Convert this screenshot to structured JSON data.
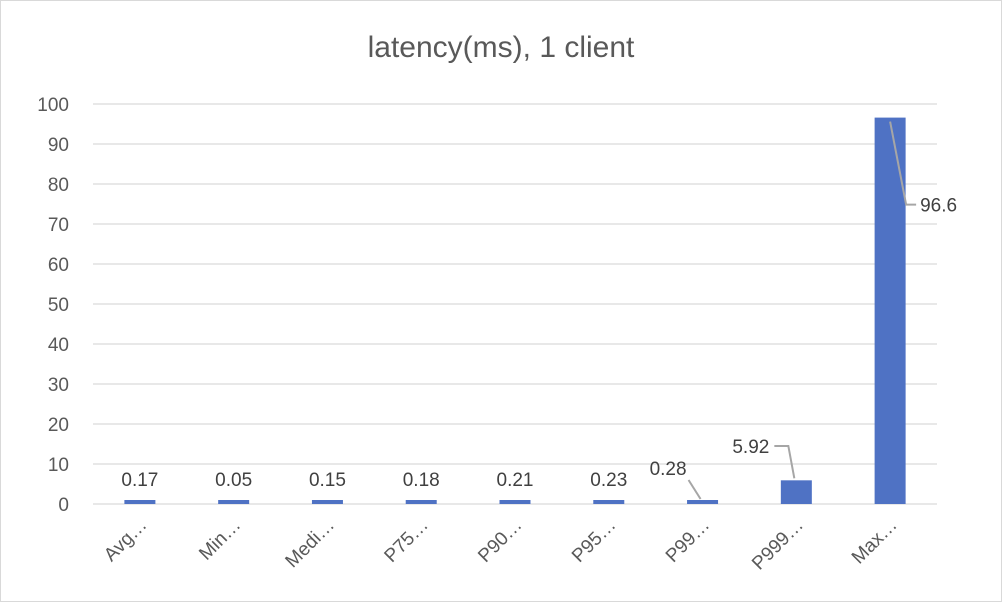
{
  "chart_data": {
    "type": "bar",
    "title": "latency(ms), 1 client",
    "categories": [
      "Avg…",
      "Min…",
      "Medi…",
      "P75…",
      "P90…",
      "P95…",
      "P99…",
      "P999…",
      "Max…"
    ],
    "values": [
      0.17,
      0.05,
      0.15,
      0.18,
      0.21,
      0.23,
      0.28,
      5.92,
      96.6
    ],
    "value_labels": [
      "0.17",
      "0.05",
      "0.15",
      "0.18",
      "0.21",
      "0.23",
      "0.28",
      "5.92",
      "96.6"
    ],
    "ylim": [
      0,
      100
    ],
    "yticks": [
      "0",
      "10",
      "20",
      "30",
      "40",
      "50",
      "60",
      "70",
      "80",
      "90",
      "100"
    ],
    "grid": true,
    "legend": "none",
    "bar_color": "#4f72c4"
  }
}
